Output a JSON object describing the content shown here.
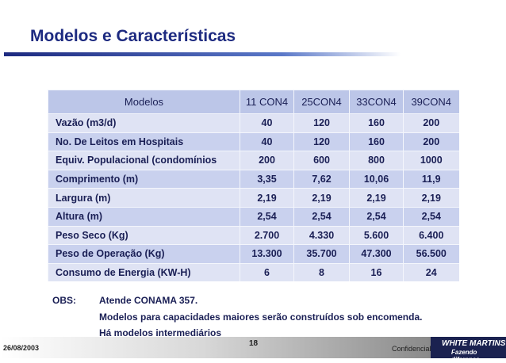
{
  "header": {
    "title": "Modelos e Características"
  },
  "table": {
    "columns": [
      "Modelos",
      "11 CON4",
      "25CON4",
      "33CON4",
      "39CON4"
    ],
    "rows": [
      [
        "Vazão (m3/d)",
        "40",
        "120",
        "160",
        "200"
      ],
      [
        "No. De Leitos em Hospitais",
        "40",
        "120",
        "160",
        "200"
      ],
      [
        "Equiv. Populacional (condomínios",
        "200",
        "600",
        "800",
        "1000"
      ],
      [
        "Comprimento (m)",
        "3,35",
        "7,62",
        "10,06",
        "11,9"
      ],
      [
        "Largura (m)",
        "2,19",
        "2,19",
        "2,19",
        "2,19"
      ],
      [
        "Altura (m)",
        "2,54",
        "2,54",
        "2,54",
        "2,54"
      ],
      [
        "Peso Seco (Kg)",
        "2.700",
        "4.330",
        "5.600",
        "6.400"
      ],
      [
        "Peso de Operação (Kg)",
        "13.300",
        "35.700",
        "47.300",
        "56.500"
      ],
      [
        "Consumo de Energia (KW-H)",
        "6",
        "8",
        "16",
        "24"
      ]
    ]
  },
  "notes": {
    "label": "OBS:",
    "lines": [
      "Atende CONAMA 357.",
      "Modelos para capacidades maiores serão construídos sob encomenda.",
      "Há modelos intermediários"
    ]
  },
  "footer": {
    "date": "26/08/2003",
    "page": "18",
    "confidential": "Confidencial",
    "logo": "WHITE MARTINS",
    "slogan": "Fazendo diferença"
  }
}
